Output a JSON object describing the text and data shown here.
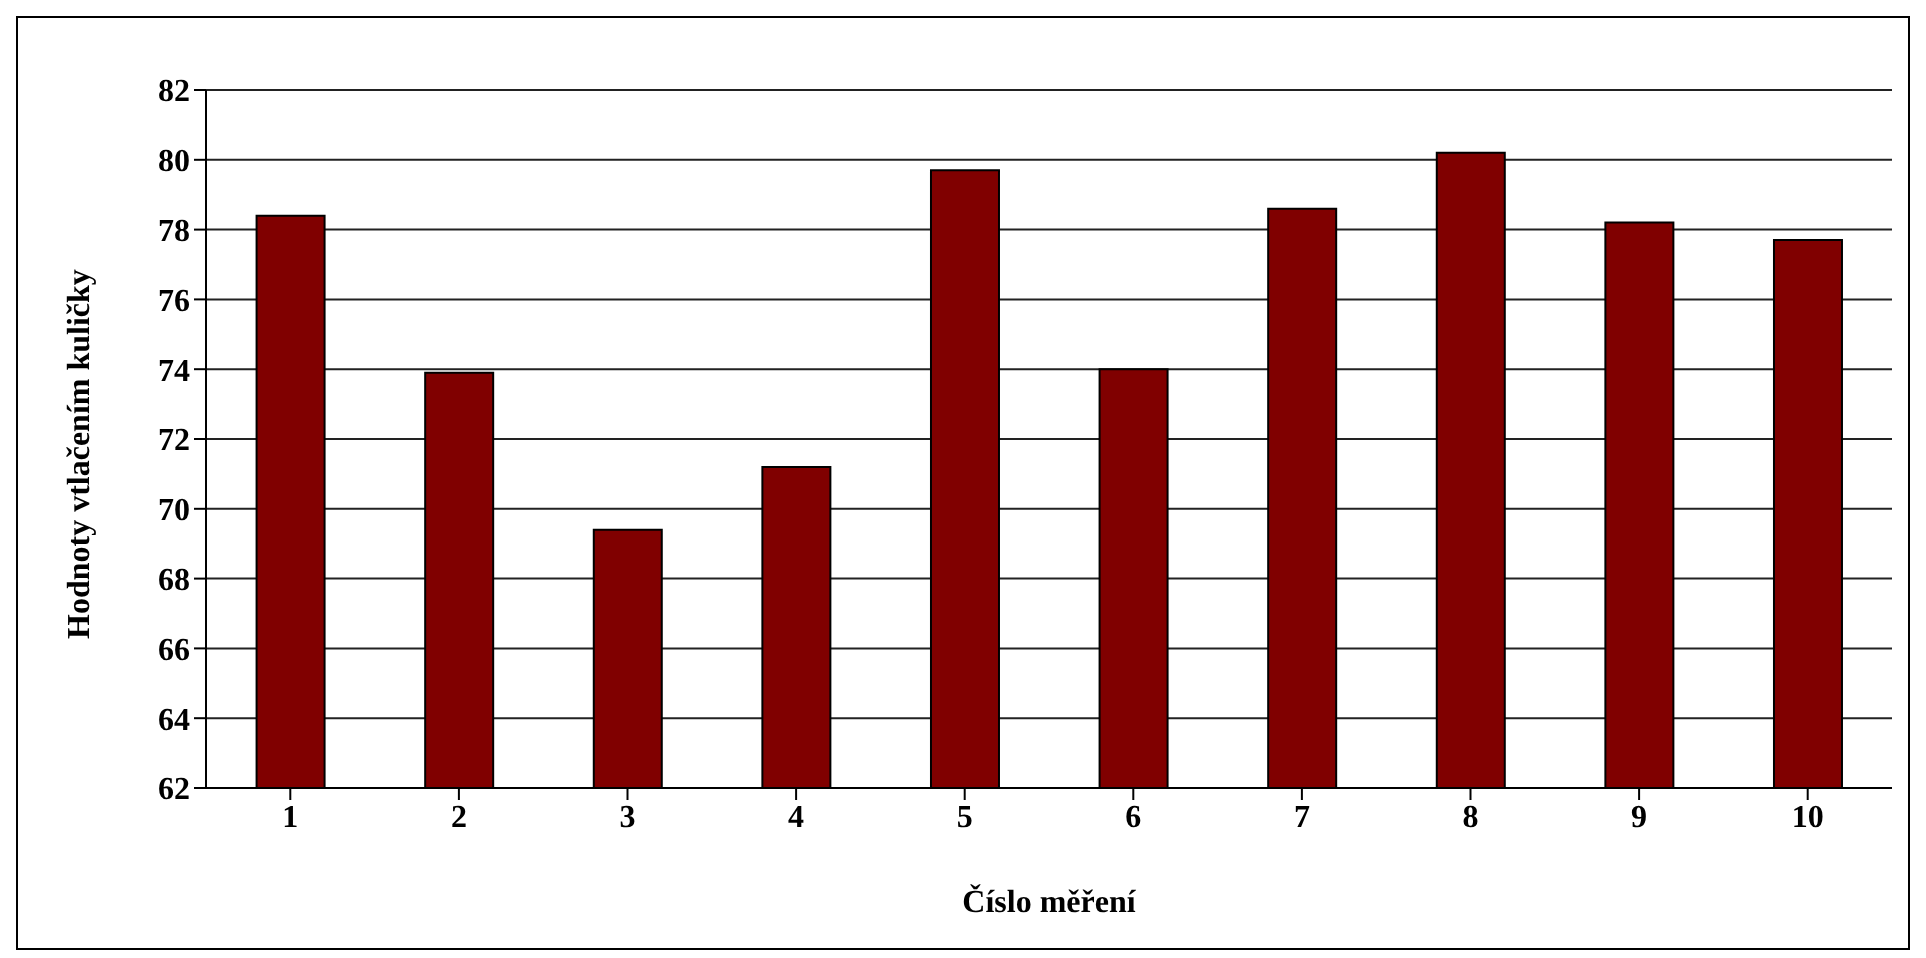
{
  "chart_data": {
    "type": "bar",
    "xlabel": "Číslo měření",
    "ylabel": "Hodnoty vtlačením kuličky",
    "categories": [
      "1",
      "2",
      "3",
      "4",
      "5",
      "6",
      "7",
      "8",
      "9",
      "10"
    ],
    "values": [
      78.4,
      73.9,
      69.4,
      71.2,
      79.7,
      74.0,
      78.6,
      80.2,
      78.2,
      77.7
    ],
    "color": "#800000",
    "ylim": [
      62,
      82
    ],
    "yticks": [
      62,
      64,
      66,
      68,
      70,
      72,
      74,
      76,
      78,
      80,
      82
    ],
    "grid": "y"
  }
}
